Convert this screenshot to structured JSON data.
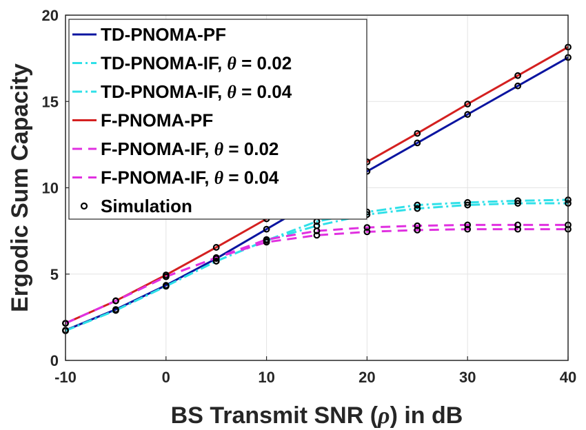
{
  "chart_data": {
    "type": "line",
    "xlabel_parts": [
      "BS Transmit SNR (",
      "ρ",
      ") in dB"
    ],
    "ylabel": "Ergodic Sum Capacity",
    "xlim": [
      -10,
      40
    ],
    "ylim": [
      0,
      20
    ],
    "xticks": [
      "-10",
      "0",
      "10",
      "20",
      "30",
      "40"
    ],
    "yticks": [
      "0",
      "5",
      "10",
      "15",
      "20"
    ],
    "grid": true,
    "legend_position": "top-left",
    "x": [
      -10,
      -5,
      0,
      5,
      10,
      15,
      20,
      25,
      30,
      35,
      40
    ],
    "series": [
      {
        "legend_parts": [
          "TD-PNOMA-PF"
        ],
        "color": "#0a14a0",
        "dash": "",
        "values": [
          1.75,
          2.95,
          4.35,
          5.9,
          7.6,
          9.3,
          10.95,
          12.6,
          14.25,
          15.9,
          17.55
        ]
      },
      {
        "legend_parts": [
          "TD-PNOMA-IF, ",
          "θ",
          " = 0.02"
        ],
        "color": "#2fe0e8",
        "dash": "14 5 3 5",
        "values": [
          1.72,
          2.9,
          4.3,
          5.75,
          6.95,
          8.05,
          8.6,
          9.0,
          9.15,
          9.25,
          9.3
        ]
      },
      {
        "legend_parts": [
          "TD-PNOMA-IF, ",
          "θ",
          " = 0.04"
        ],
        "color": "#2fe0e8",
        "dash": "14 5 3 5",
        "values": [
          1.72,
          2.9,
          4.3,
          5.75,
          6.95,
          7.8,
          8.45,
          8.8,
          9.0,
          9.1,
          9.1
        ]
      },
      {
        "legend_parts": [
          "F-PNOMA-PF"
        ],
        "color": "#d42020",
        "dash": "",
        "values": [
          2.15,
          3.45,
          4.95,
          6.55,
          8.2,
          9.85,
          11.5,
          13.15,
          14.85,
          16.5,
          18.15
        ]
      },
      {
        "legend_parts": [
          "F-PNOMA-IF, ",
          "θ",
          " = 0.02"
        ],
        "color": "#e030e0",
        "dash": "14 9",
        "values": [
          2.15,
          3.45,
          4.85,
          5.95,
          7.0,
          7.5,
          7.7,
          7.8,
          7.85,
          7.85,
          7.85
        ]
      },
      {
        "legend_parts": [
          "F-PNOMA-IF, ",
          "θ",
          " = 0.04"
        ],
        "color": "#e030e0",
        "dash": "14 9",
        "values": [
          2.15,
          3.45,
          4.85,
          5.95,
          6.85,
          7.25,
          7.45,
          7.55,
          7.6,
          7.6,
          7.6
        ]
      }
    ],
    "markers": {
      "legend": "Simulation",
      "color": "#000000"
    }
  }
}
